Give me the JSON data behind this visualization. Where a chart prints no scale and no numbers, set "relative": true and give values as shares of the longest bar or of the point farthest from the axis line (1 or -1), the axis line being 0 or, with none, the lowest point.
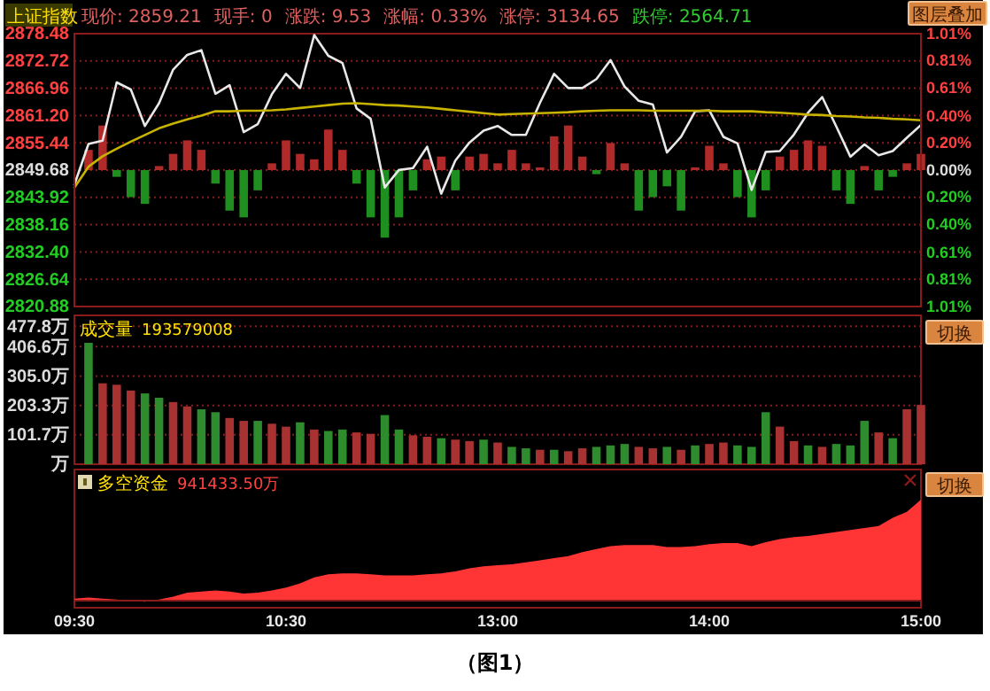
{
  "chart_data": [
    {
      "type": "line",
      "title": "上证指数",
      "annotations": [
        "现价: 2859.21",
        "现手: 0",
        "涨跌: 9.53",
        "涨幅: 0.33%",
        "涨停: 3134.65",
        "跌停: 2564.71",
        "图层叠加"
      ],
      "categories": [
        null,
        null,
        null,
        null,
        null,
        null,
        null,
        null,
        null,
        null,
        null,
        null,
        null,
        null,
        null,
        null,
        null,
        null,
        null,
        null,
        null,
        null,
        null,
        null,
        null,
        null,
        null,
        null,
        null,
        null,
        null,
        null,
        null,
        null,
        null,
        null,
        null,
        null,
        null,
        null,
        null,
        null,
        null,
        null,
        null,
        null,
        null,
        null,
        null,
        null,
        null,
        null,
        null,
        null,
        null,
        null,
        null,
        null,
        null,
        null,
        null
      ],
      "tick_labels": "y",
      "grid": "y",
      "ylim": [
        2820.88,
        2878.48
      ],
      "yticks": [
        2878.48,
        2872.72,
        2866.96,
        {
          "value": 2861.2,
          "label": "2861.20"
        },
        2855.44,
        2849.68,
        2843.92,
        2838.16,
        {
          "value": 2832.4,
          "label": "2832.40"
        },
        2826.64,
        2820.88
      ],
      "y2lim": [
        -1.01,
        1.01
      ],
      "y2ticks": [
        {
          "value": 1.01,
          "label": "1.01%"
        },
        {
          "value": 0.81,
          "label": "0.81%"
        },
        {
          "value": 0.61,
          "label": "0.61%"
        },
        {
          "value": 0.4,
          "label": "0.40%"
        },
        {
          "value": 0.2,
          "label": "0.20%"
        },
        {
          "value": 0,
          "label": "0.00%"
        },
        {
          "value": -0.2,
          "label": "0.20%"
        },
        {
          "value": -0.4,
          "label": "0.40%"
        },
        {
          "value": -0.61,
          "label": "0.61%"
        },
        {
          "value": -0.81,
          "label": "0.81%"
        },
        {
          "value": -1.01,
          "label": "1.01%"
        }
      ],
      "series": [
        {
          "type": "bar",
          "axis": "y2",
          "values": [
            null,
            0.15,
            0.33,
            -0.05,
            -0.2,
            -0.25,
            0.03,
            0.12,
            0.22,
            0.15,
            -0.1,
            -0.3,
            -0.35,
            -0.15,
            0.05,
            0.22,
            0.12,
            0.08,
            0.3,
            0.15,
            -0.1,
            -0.35,
            -0.5,
            -0.35,
            -0.15,
            0.08,
            0.1,
            -0.15,
            0.1,
            0.12,
            0.05,
            0.15,
            0.05,
            0.02,
            0.25,
            0.33,
            0.1,
            -0.03,
            0.2,
            0.05,
            -0.3,
            -0.2,
            -0.12,
            -0.3,
            0.02,
            0.18,
            0.05,
            -0.2,
            -0.35,
            -0.15,
            0.1,
            0.15,
            0.22,
            0.18,
            -0.15,
            -0.25,
            0.03,
            -0.15,
            -0.05,
            0.05,
            0.12
          ],
          "colors": [
            null,
            "#b02a2a",
            "#b02a2a",
            "#1f8f1f",
            "#1f8f1f",
            "#1f8f1f",
            "#b02a2a",
            "#b02a2a",
            "#b02a2a",
            "#b02a2a",
            "#1f8f1f",
            "#1f8f1f",
            "#1f8f1f",
            "#1f8f1f",
            "#b02a2a",
            "#b02a2a",
            "#b02a2a",
            "#b02a2a",
            "#b02a2a",
            "#b02a2a",
            "#1f8f1f",
            "#1f8f1f",
            "#1f8f1f",
            "#1f8f1f",
            "#1f8f1f",
            "#b02a2a",
            "#b02a2a",
            "#1f8f1f",
            "#b02a2a",
            "#b02a2a",
            "#b02a2a",
            "#b02a2a",
            "#b02a2a",
            "#b02a2a",
            "#b02a2a",
            "#b02a2a",
            "#b02a2a",
            "#1f8f1f",
            "#b02a2a",
            "#b02a2a",
            "#1f8f1f",
            "#1f8f1f",
            "#1f8f1f",
            "#1f8f1f",
            "#b02a2a",
            "#b02a2a",
            "#b02a2a",
            "#1f8f1f",
            "#1f8f1f",
            "#1f8f1f",
            "#b02a2a",
            "#b02a2a",
            "#b02a2a",
            "#b02a2a",
            "#1f8f1f",
            "#1f8f1f",
            "#b02a2a",
            "#1f8f1f",
            "#1f8f1f",
            "#b02a2a",
            "#b02a2a"
          ]
        },
        {
          "color": "#e8e8e8",
          "values": [
            2846.6,
            2855.2,
            2855.9,
            2868.2,
            2866.7,
            2859.0,
            2863.8,
            2870.9,
            2874.0,
            2875.0,
            2865.8,
            2867.6,
            2857.7,
            2859.4,
            2865.7,
            2870.0,
            2867.0,
            2878.2,
            2873.8,
            2872.3,
            2862.7,
            2860.5,
            2846.0,
            2849.7,
            2850.1,
            2854.6,
            2844.7,
            2851.7,
            2855.5,
            2858.0,
            2859.0,
            2857.1,
            2857.1,
            2863.9,
            2870.0,
            2867.0,
            2867.0,
            2868.9,
            2872.9,
            2867.3,
            2864.3,
            2863.5,
            2853.4,
            2856.7,
            2862.1,
            2862.3,
            2856.7,
            2855.3,
            2845.5,
            2853.5,
            2853.7,
            2857.2,
            2861.8,
            2865.1,
            2858.9,
            2852.5,
            2855.1,
            2852.8,
            2853.7,
            2856.5,
            2859.2
          ]
        },
        {
          "color": "#c8b400",
          "values": [
            2846.0,
            2850.4,
            2852.6,
            2854.2,
            2855.7,
            2857.1,
            2858.5,
            2859.5,
            2860.4,
            2861.2,
            2862.1,
            2862.1,
            2862.2,
            2862.2,
            2862.3,
            2862.5,
            2862.8,
            2863.1,
            2863.4,
            2863.7,
            2863.8,
            2863.6,
            2863.4,
            2863.3,
            2863.1,
            2862.9,
            2862.6,
            2862.3,
            2862.0,
            2861.7,
            2861.4,
            2861.5,
            2861.6,
            2861.7,
            2861.8,
            2861.9,
            2862.1,
            2862.2,
            2862.3,
            2862.3,
            2862.3,
            2862.2,
            2862.2,
            2862.2,
            2862.2,
            2862.2,
            2862.1,
            2862.1,
            2862.1,
            2861.9,
            2861.8,
            2861.6,
            2861.4,
            2861.3,
            2861.1,
            2861.0,
            2860.8,
            2860.7,
            2860.5,
            2860.4,
            2860.2
          ]
        }
      ]
    },
    {
      "type": "bar",
      "title": "成交量",
      "annotations": [
        "193579008",
        "切换"
      ],
      "categories": [
        null,
        null,
        null,
        null,
        null,
        null,
        null,
        null,
        null,
        null,
        null,
        null,
        null,
        null,
        null,
        null,
        null,
        null,
        null,
        null,
        null,
        null,
        null,
        null,
        null,
        null,
        null,
        null,
        null,
        null,
        null,
        null,
        null,
        null,
        null,
        null,
        null,
        null,
        null,
        null,
        null,
        null,
        null,
        null,
        null,
        null,
        null,
        null,
        null,
        null,
        null,
        null,
        null,
        null,
        null,
        null,
        null,
        null,
        null,
        null,
        null
      ],
      "tick_labels": "y",
      "grid": "y",
      "ylim": [
        0,
        515
      ],
      "yticks": [
        {
          "value": 477.8,
          "label": "477.8万"
        },
        {
          "value": 406.6,
          "label": "406.6万"
        },
        {
          "value": 305.0,
          "label": "305.0万"
        },
        {
          "value": 203.3,
          "label": "203.3万"
        },
        {
          "value": 101.7,
          "label": "101.7万"
        },
        {
          "value": 0,
          "label": "万"
        }
      ],
      "values": [
        null,
        420,
        280,
        275,
        255,
        245,
        230,
        215,
        200,
        190,
        180,
        160,
        150,
        150,
        140,
        130,
        145,
        120,
        115,
        120,
        110,
        105,
        170,
        120,
        100,
        95,
        90,
        85,
        80,
        85,
        75,
        60,
        55,
        50,
        50,
        45,
        55,
        60,
        65,
        70,
        60,
        55,
        60,
        50,
        65,
        70,
        75,
        65,
        60,
        180,
        130,
        80,
        65,
        60,
        70,
        65,
        150,
        110,
        90,
        190,
        205
      ],
      "colors": [
        null,
        "#2e8b2e",
        "#a83232",
        "#a83232",
        "#a83232",
        "#2e8b2e",
        "#2e8b2e",
        "#a83232",
        "#a83232",
        "#2e8b2e",
        "#2e8b2e",
        "#a83232",
        "#a83232",
        "#2e8b2e",
        "#a83232",
        "#a83232",
        "#2e8b2e",
        "#a83232",
        "#2e8b2e",
        "#2e8b2e",
        "#a83232",
        "#a83232",
        "#2e8b2e",
        "#2e8b2e",
        "#a83232",
        "#a83232",
        "#2e8b2e",
        "#a83232",
        "#a83232",
        "#2e8b2e",
        "#a83232",
        "#2e8b2e",
        "#2e8b2e",
        "#a83232",
        "#2e8b2e",
        "#a83232",
        "#a83232",
        "#2e8b2e",
        "#2e8b2e",
        "#2e8b2e",
        "#a83232",
        "#a83232",
        "#2e8b2e",
        "#a83232",
        "#2e8b2e",
        "#a83232",
        "#a83232",
        "#2e8b2e",
        "#2e8b2e",
        "#2e8b2e",
        "#a83232",
        "#a83232",
        "#2e8b2e",
        "#a83232",
        "#2e8b2e",
        "#2e8b2e",
        "#2e8b2e",
        "#a83232",
        "#2e8b2e",
        "#a83232",
        "#a83232"
      ]
    },
    {
      "type": "area",
      "title": "多空资金",
      "annotations": [
        "941433.50万",
        "切换",
        "（图1）"
      ],
      "relative": true,
      "categories": [
        "09:30",
        null,
        null,
        null,
        null,
        null,
        null,
        null,
        null,
        null,
        null,
        null,
        null,
        null,
        null,
        "10:30",
        null,
        null,
        null,
        null,
        null,
        null,
        null,
        null,
        null,
        null,
        null,
        null,
        null,
        null,
        "13:00",
        null,
        null,
        null,
        null,
        null,
        null,
        null,
        null,
        null,
        null,
        null,
        null,
        null,
        null,
        "14:00",
        null,
        null,
        null,
        null,
        null,
        null,
        null,
        null,
        null,
        null,
        null,
        null,
        null,
        null,
        "15:00"
      ],
      "tick_labels": "x",
      "color": "#ff3535",
      "values": [
        0.02,
        0.03,
        0.02,
        0.01,
        0,
        -0.01,
        0.01,
        0.04,
        0.08,
        0.09,
        0.1,
        0.09,
        0.07,
        0.08,
        0.1,
        0.13,
        0.17,
        0.23,
        0.26,
        0.27,
        0.27,
        0.26,
        0.25,
        0.25,
        0.25,
        0.26,
        0.27,
        0.29,
        0.32,
        0.34,
        0.35,
        0.36,
        0.38,
        0.4,
        0.42,
        0.44,
        0.48,
        0.51,
        0.54,
        0.55,
        0.55,
        0.55,
        0.53,
        0.53,
        0.54,
        0.56,
        0.57,
        0.57,
        0.54,
        0.58,
        0.61,
        0.63,
        0.64,
        0.66,
        0.68,
        0.7,
        0.72,
        0.74,
        0.82,
        0.88,
        1
      ]
    }
  ]
}
